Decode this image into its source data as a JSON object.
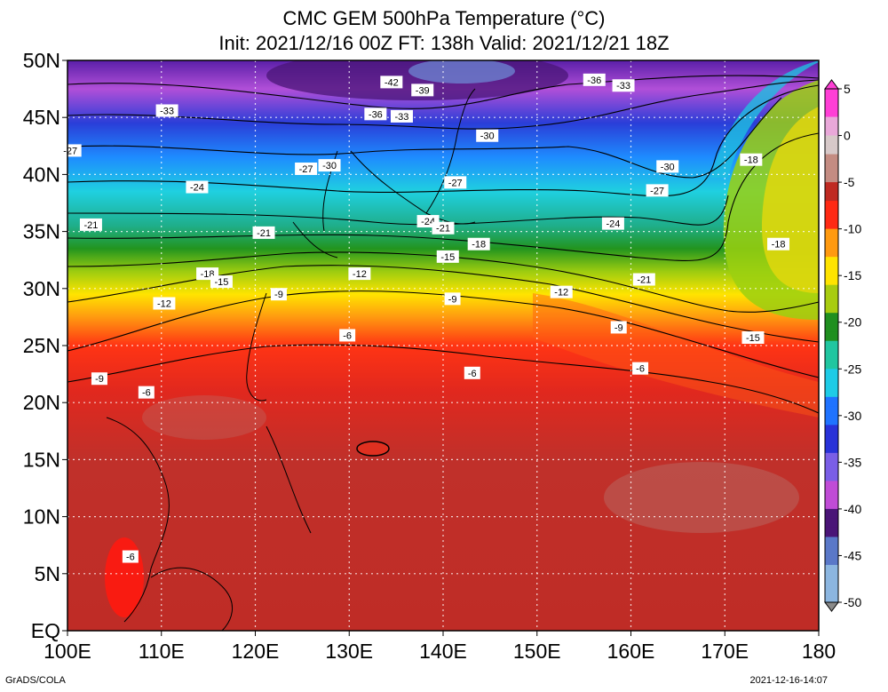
{
  "title_line1": "CMC GEM 500hPa Temperature (°C)",
  "title_line2": "Init: 2021/12/16 00Z  FT: 138h  Valid: 2021/12/21 18Z",
  "lat_labels": [
    "50N",
    "45N",
    "40N",
    "35N",
    "30N",
    "25N",
    "20N",
    "15N",
    "10N",
    "5N",
    "EQ"
  ],
  "lon_labels": [
    "100E",
    "110E",
    "120E",
    "130E",
    "140E",
    "150E",
    "160E",
    "170E",
    "180"
  ],
  "colorbar": {
    "labels": [
      "5",
      "0",
      "-5",
      "-10",
      "-15",
      "-20",
      "-25",
      "-30",
      "-35",
      "-40",
      "-45",
      "-50"
    ],
    "stops": [
      {
        "v": 5,
        "c": "#ff3fd6"
      },
      {
        "v": 2,
        "c": "#e9a8d9"
      },
      {
        "v": 0,
        "c": "#d7c9c9"
      },
      {
        "v": -2,
        "c": "#c48c82"
      },
      {
        "v": -5,
        "c": "#bf2a22"
      },
      {
        "v": -7,
        "c": "#ff2a14"
      },
      {
        "v": -10,
        "c": "#ff9a10"
      },
      {
        "v": -13,
        "c": "#ffe400"
      },
      {
        "v": -16,
        "c": "#a8cc10"
      },
      {
        "v": -19,
        "c": "#1f8f1f"
      },
      {
        "v": -22,
        "c": "#20c6a0"
      },
      {
        "v": -25,
        "c": "#1ecbe6"
      },
      {
        "v": -28,
        "c": "#1f73ff"
      },
      {
        "v": -31,
        "c": "#2832d8"
      },
      {
        "v": -34,
        "c": "#7a5ee6"
      },
      {
        "v": -37,
        "c": "#c04cd6"
      },
      {
        "v": -40,
        "c": "#4a1577"
      },
      {
        "v": -43,
        "c": "#5a78c8"
      },
      {
        "v": -46,
        "c": "#8cb6e0"
      },
      {
        "v": -50,
        "c": "#8a8a8a"
      }
    ]
  },
  "contour_labels": [
    {
      "t": "-42",
      "lon": 134.5,
      "lat": 48.1
    },
    {
      "t": "-39",
      "lon": 137.8,
      "lat": 47.4
    },
    {
      "t": "-36",
      "lon": 156.1,
      "lat": 48.3
    },
    {
      "t": "-33",
      "lon": 159.2,
      "lat": 47.8
    },
    {
      "t": "-33",
      "lon": 110.6,
      "lat": 45.6
    },
    {
      "t": "-36",
      "lon": 132.8,
      "lat": 45.3
    },
    {
      "t": "-33",
      "lon": 135.6,
      "lat": 45.1
    },
    {
      "t": "-30",
      "lon": 144.7,
      "lat": 43.4
    },
    {
      "t": "-27",
      "lon": 100.3,
      "lat": 42.1
    },
    {
      "t": "-27",
      "lon": 125.4,
      "lat": 40.5
    },
    {
      "t": "-30",
      "lon": 127.9,
      "lat": 40.8
    },
    {
      "t": "-30",
      "lon": 163.9,
      "lat": 40.7
    },
    {
      "t": "-18",
      "lon": 172.8,
      "lat": 41.3
    },
    {
      "t": "-24",
      "lon": 113.8,
      "lat": 38.9
    },
    {
      "t": "-27",
      "lon": 141.3,
      "lat": 39.3
    },
    {
      "t": "-27",
      "lon": 162.8,
      "lat": 38.6
    },
    {
      "t": "-24",
      "lon": 138.4,
      "lat": 35.9
    },
    {
      "t": "-21",
      "lon": 140.0,
      "lat": 35.3
    },
    {
      "t": "-24",
      "lon": 158.1,
      "lat": 35.7
    },
    {
      "t": "-21",
      "lon": 102.5,
      "lat": 35.6
    },
    {
      "t": "-21",
      "lon": 120.9,
      "lat": 34.9
    },
    {
      "t": "-18",
      "lon": 143.8,
      "lat": 33.9
    },
    {
      "t": "-18",
      "lon": 175.7,
      "lat": 33.9
    },
    {
      "t": "-15",
      "lon": 140.5,
      "lat": 32.8
    },
    {
      "t": "-18",
      "lon": 114.9,
      "lat": 31.3
    },
    {
      "t": "-15",
      "lon": 116.4,
      "lat": 30.6
    },
    {
      "t": "-12",
      "lon": 131.1,
      "lat": 31.3
    },
    {
      "t": "-21",
      "lon": 161.4,
      "lat": 30.8
    },
    {
      "t": "-9",
      "lon": 122.5,
      "lat": 29.5
    },
    {
      "t": "-12",
      "lon": 152.6,
      "lat": 29.7
    },
    {
      "t": "-9",
      "lon": 141.0,
      "lat": 29.1
    },
    {
      "t": "-12",
      "lon": 110.3,
      "lat": 28.7
    },
    {
      "t": "-9",
      "lon": 158.7,
      "lat": 26.6
    },
    {
      "t": "-6",
      "lon": 129.8,
      "lat": 25.9
    },
    {
      "t": "-15",
      "lon": 173.0,
      "lat": 25.7
    },
    {
      "t": "-6",
      "lon": 161.0,
      "lat": 23.0
    },
    {
      "t": "-6",
      "lon": 143.1,
      "lat": 22.6
    },
    {
      "t": "-9",
      "lon": 103.4,
      "lat": 22.1
    },
    {
      "t": "-6",
      "lon": 108.4,
      "lat": 20.9
    },
    {
      "t": "-6",
      "lon": 106.7,
      "lat": 6.5
    }
  ],
  "footer_left": "GrADS/COLA",
  "footer_right": "2021-12-16-14:07"
}
